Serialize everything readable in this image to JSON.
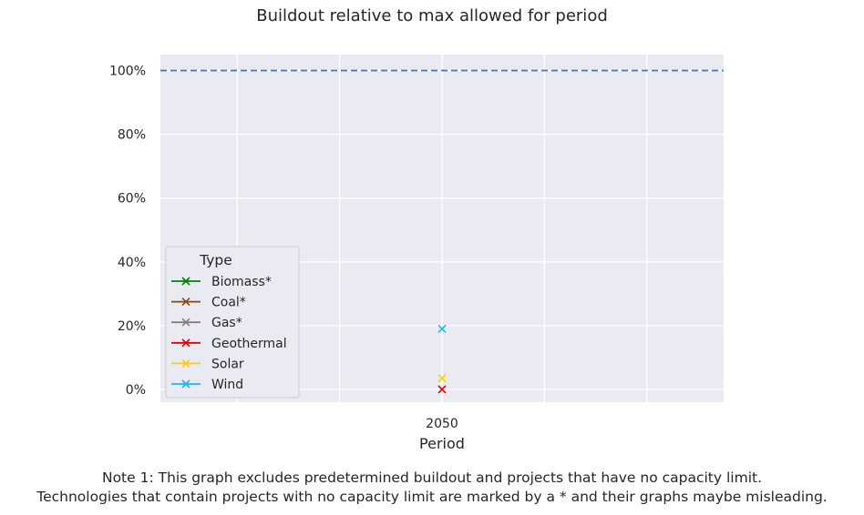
{
  "chart_data": {
    "type": "line",
    "title": "Buildout relative to max allowed for period",
    "xlabel": "Period",
    "ylabel": "",
    "categories": [
      "2050"
    ],
    "ylim": [
      -0.04,
      1.05
    ],
    "yticks": [
      0,
      0.2,
      0.4,
      0.6,
      0.8,
      1.0
    ],
    "ytick_labels": [
      "0%",
      "20%",
      "40%",
      "60%",
      "80%",
      "100%"
    ],
    "grid": true,
    "legend": {
      "title": "Type",
      "placement": "lower-left"
    },
    "reference_line": {
      "value": 1.0,
      "style": "dashed",
      "color": "#4472c4"
    },
    "series": [
      {
        "name": "Biomass*",
        "color": "#008000",
        "values": [
          null
        ]
      },
      {
        "name": "Coal*",
        "color": "#8b4513",
        "values": [
          null
        ]
      },
      {
        "name": "Gas*",
        "color": "#808080",
        "values": [
          null
        ]
      },
      {
        "name": "Geothermal",
        "color": "#e00000",
        "values": [
          0.0
        ]
      },
      {
        "name": "Solar",
        "color": "#ffcc00",
        "values": [
          0.035
        ]
      },
      {
        "name": "Wind",
        "color": "#1ab8ee",
        "values": [
          0.19
        ]
      }
    ]
  },
  "footnote": {
    "line1": "Note 1: This graph excludes predetermined buildout and projects that have no capacity limit.",
    "line2": "Technologies that contain projects with no capacity limit are marked by a * and their graphs maybe misleading."
  },
  "colors": {
    "plot_background": "#eaeaf2",
    "grid": "#ffffff",
    "text": "#262626"
  }
}
